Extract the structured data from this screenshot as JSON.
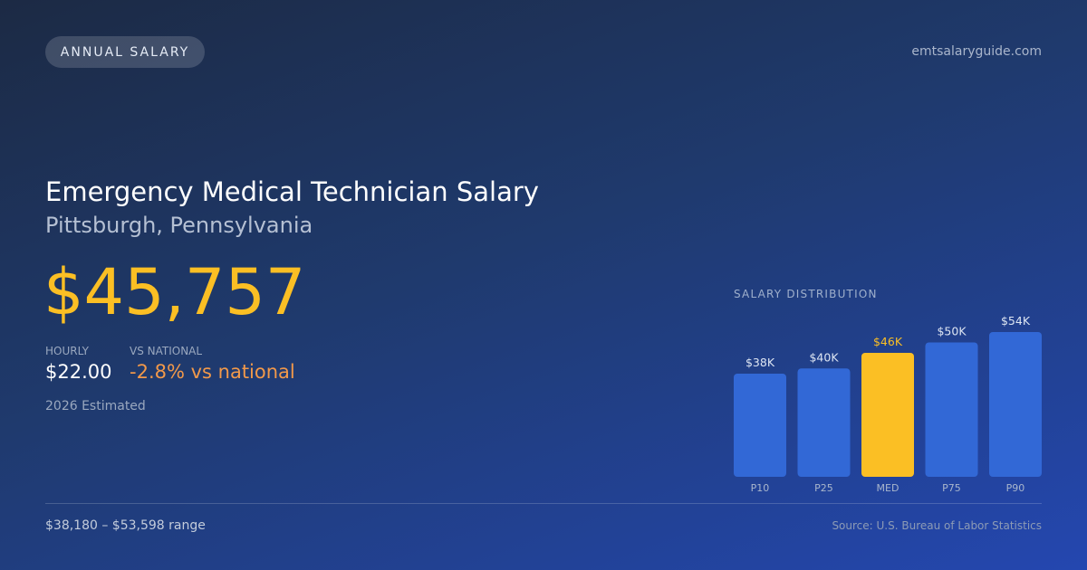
{
  "header": {
    "badge": "ANNUAL SALARY",
    "site": "emtsalaryguide.com"
  },
  "main": {
    "title": "Emergency Medical Technician Salary",
    "location": "Pittsburgh, Pennsylvania",
    "annual_salary": "$45,757",
    "hourly_label": "HOURLY",
    "hourly_value": "$22.00",
    "national_label": "VS NATIONAL",
    "national_value": "-2.8% vs national",
    "estimate_note": "2026 Estimated"
  },
  "footer": {
    "range": "$38,180 – $53,598 range",
    "source": "Source: U.S. Bureau of Labor Statistics"
  },
  "colors": {
    "accent": "#fbbf24",
    "bar": "#3268d6",
    "negative": "#f2994a"
  },
  "chart_data": {
    "type": "bar",
    "title": "SALARY DISTRIBUTION",
    "categories": [
      "P10",
      "P25",
      "MED",
      "P75",
      "P90"
    ],
    "values": [
      38,
      40,
      46,
      50,
      54
    ],
    "value_labels": [
      "$38K",
      "$40K",
      "$46K",
      "$50K",
      "$54K"
    ],
    "highlight_category": "MED",
    "unit": "$K",
    "grid": false
  }
}
